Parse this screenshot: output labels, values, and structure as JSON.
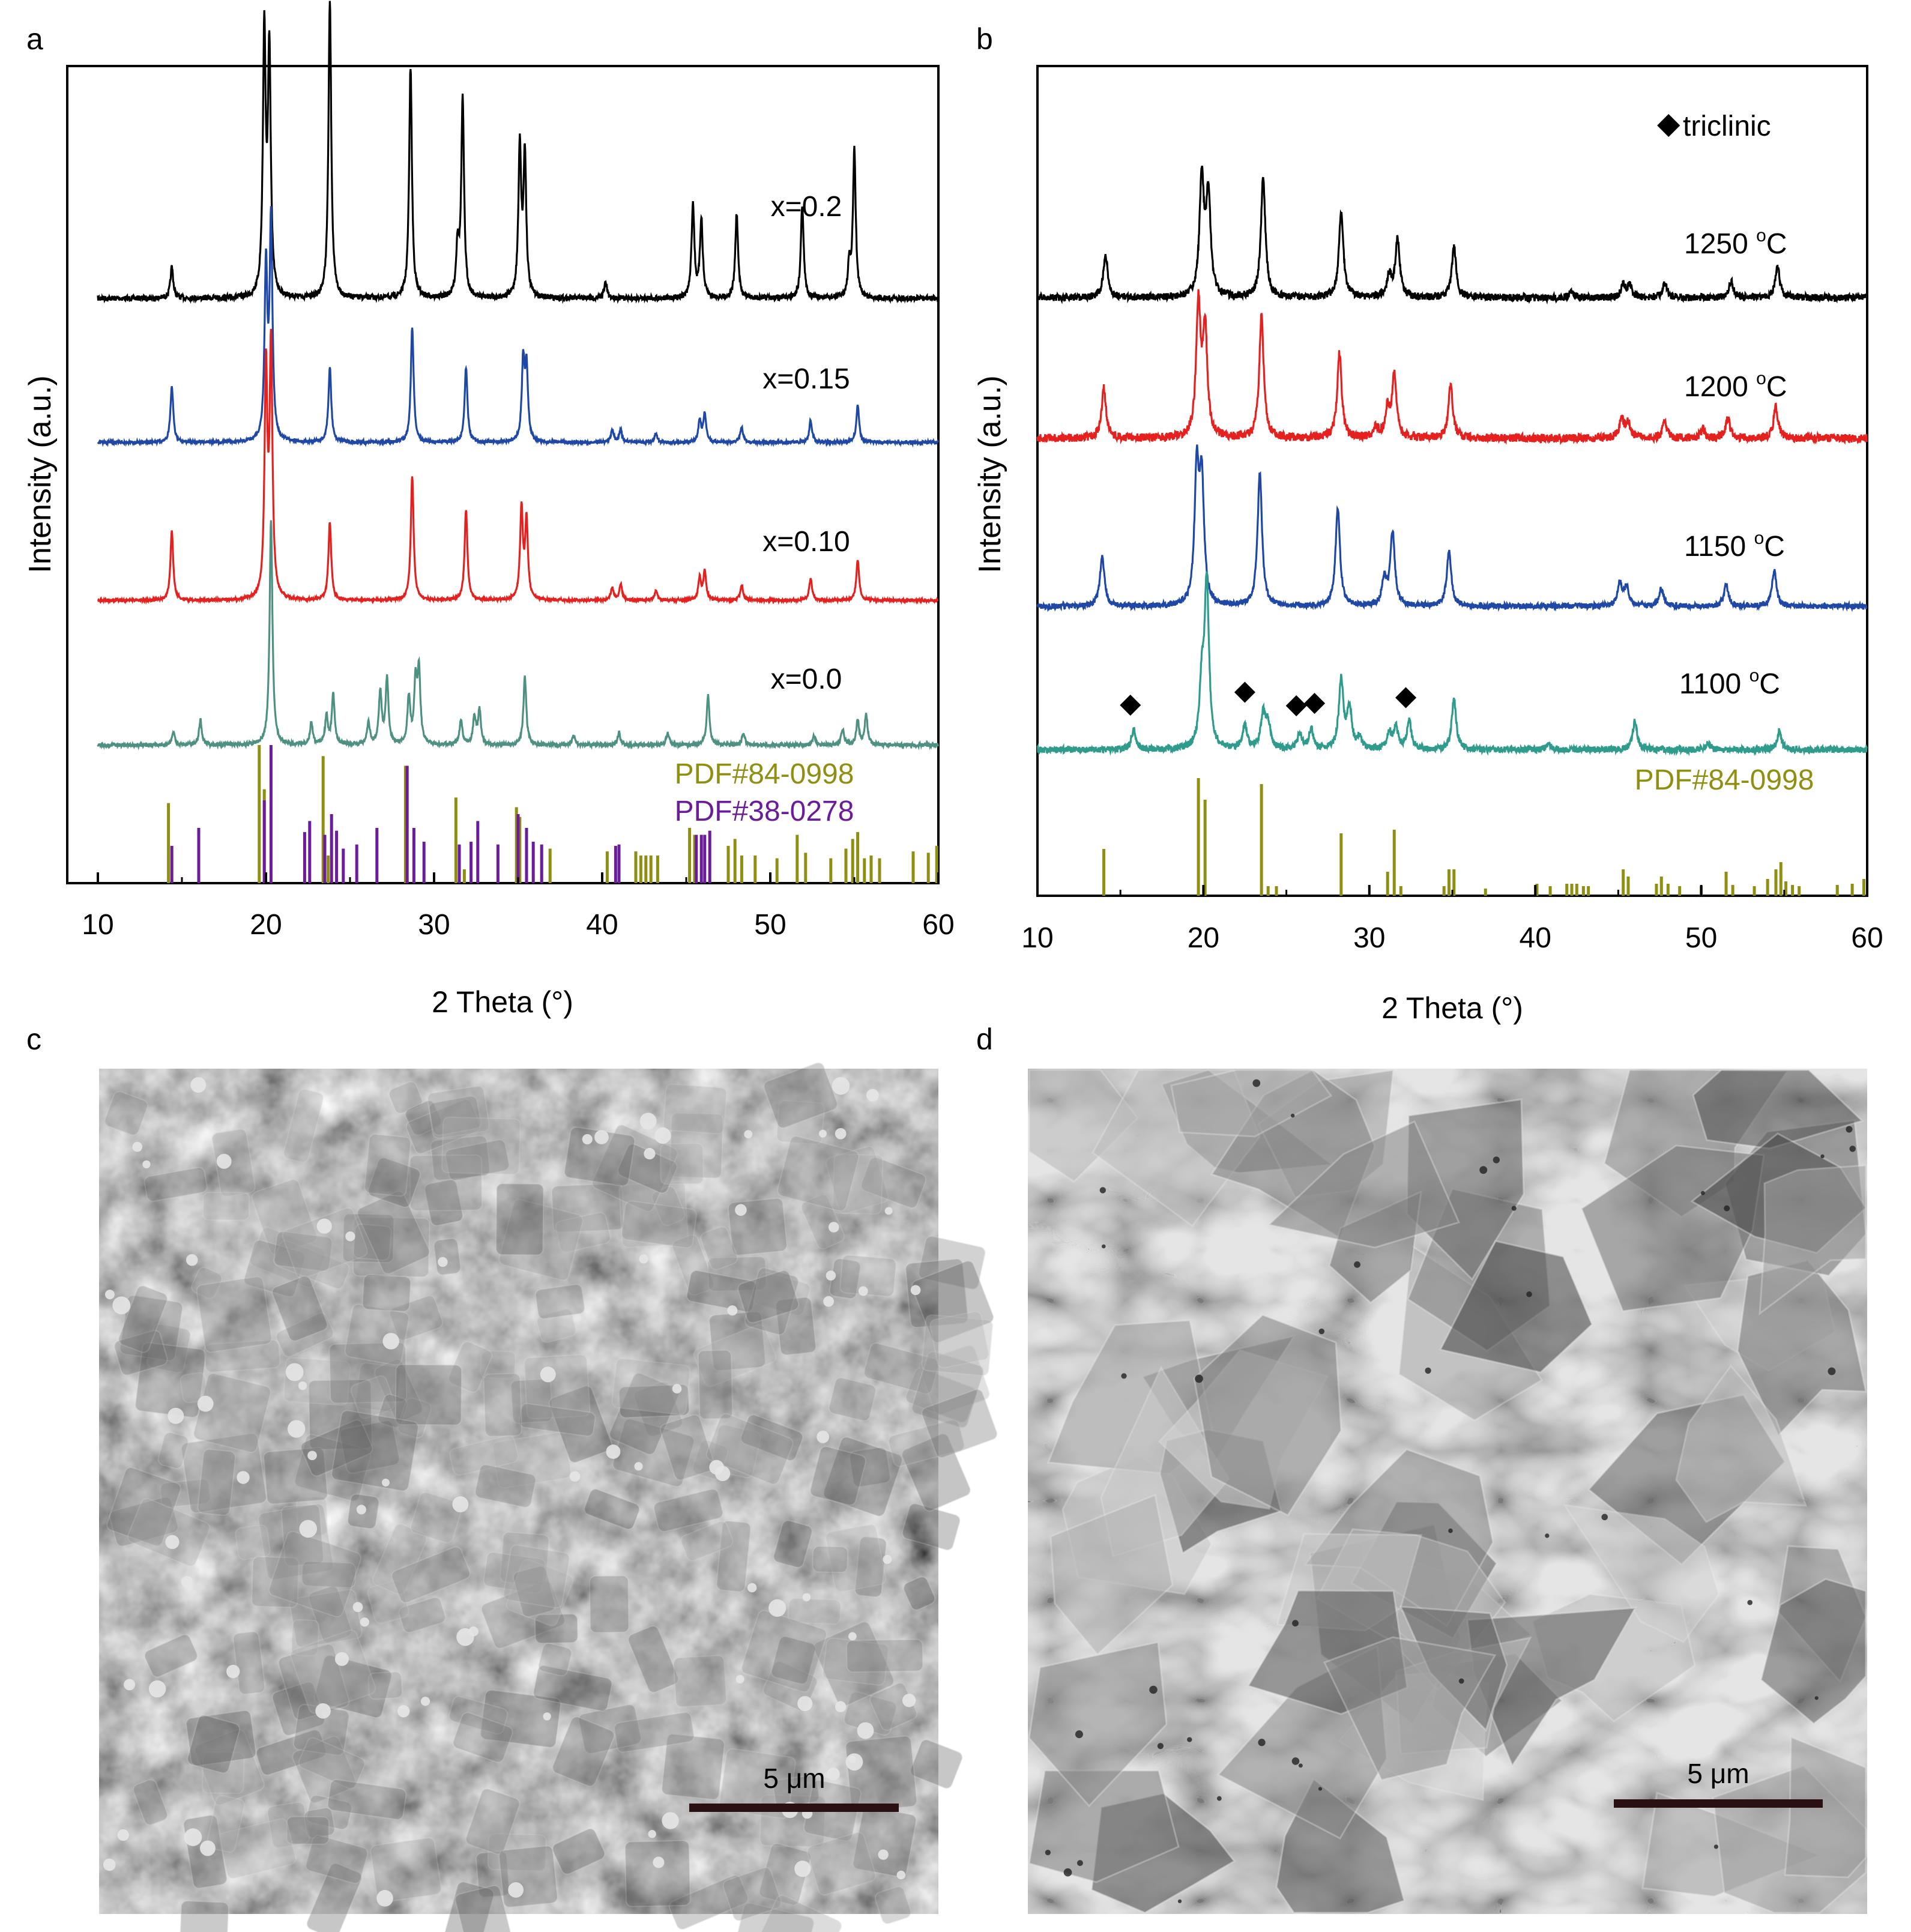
{
  "panels": {
    "a": "a",
    "b": "b",
    "c": "c",
    "d": "d"
  },
  "chart_data": [
    {
      "panel": "a",
      "type": "line",
      "xlabel": "2 Theta (°)",
      "ylabel": "Intensity (a.u.)",
      "xlim": [
        10,
        60
      ],
      "xticks": [
        10,
        20,
        30,
        40,
        50,
        60
      ],
      "tick_labels": [
        "10",
        "20",
        "30",
        "40",
        "50",
        "60"
      ],
      "series": [
        {
          "name": "x=0.2",
          "color": "#000000",
          "peaks": [
            [
              14.4,
              0.1
            ],
            [
              19.9,
              0.84
            ],
            [
              20.2,
              0.78
            ],
            [
              23.8,
              0.95
            ],
            [
              28.6,
              0.74
            ],
            [
              31.4,
              0.16
            ],
            [
              31.7,
              0.63
            ],
            [
              35.1,
              0.48
            ],
            [
              35.4,
              0.45
            ],
            [
              40.2,
              0.05
            ],
            [
              45.4,
              0.3
            ],
            [
              45.9,
              0.25
            ],
            [
              48.0,
              0.27
            ],
            [
              51.9,
              0.3
            ],
            [
              54.7,
              0.1
            ],
            [
              55.0,
              0.47
            ]
          ]
        },
        {
          "name": "x=0.15",
          "color": "#1f47a6",
          "peaks": [
            [
              14.4,
              0.18
            ],
            [
              20.0,
              0.55
            ],
            [
              20.3,
              0.7
            ],
            [
              23.8,
              0.24
            ],
            [
              28.7,
              0.37
            ],
            [
              31.9,
              0.24
            ],
            [
              35.3,
              0.25
            ],
            [
              35.5,
              0.23
            ],
            [
              40.6,
              0.04
            ],
            [
              41.1,
              0.04
            ],
            [
              43.2,
              0.03
            ],
            [
              45.8,
              0.07
            ],
            [
              46.1,
              0.09
            ],
            [
              48.3,
              0.05
            ],
            [
              52.4,
              0.07
            ],
            [
              55.2,
              0.12
            ]
          ]
        },
        {
          "name": "x=0.10",
          "color": "#e5211f",
          "peaks": [
            [
              14.4,
              0.22
            ],
            [
              20.0,
              0.73
            ],
            [
              20.3,
              0.8
            ],
            [
              23.8,
              0.25
            ],
            [
              28.7,
              0.4
            ],
            [
              31.9,
              0.29
            ],
            [
              35.2,
              0.29
            ],
            [
              35.5,
              0.25
            ],
            [
              40.6,
              0.04
            ],
            [
              41.1,
              0.05
            ],
            [
              43.2,
              0.03
            ],
            [
              45.8,
              0.07
            ],
            [
              46.1,
              0.09
            ],
            [
              48.3,
              0.05
            ],
            [
              52.4,
              0.07
            ],
            [
              55.2,
              0.13
            ]
          ]
        },
        {
          "name": "x=0.0",
          "color": "#4e9182",
          "peaks": [
            [
              14.5,
              0.04
            ],
            [
              16.1,
              0.08
            ],
            [
              20.3,
              0.72
            ],
            [
              22.7,
              0.07
            ],
            [
              23.6,
              0.09
            ],
            [
              24.0,
              0.16
            ],
            [
              26.1,
              0.07
            ],
            [
              26.8,
              0.17
            ],
            [
              27.2,
              0.21
            ],
            [
              28.5,
              0.15
            ],
            [
              28.9,
              0.19
            ],
            [
              29.1,
              0.23
            ],
            [
              31.6,
              0.08
            ],
            [
              32.4,
              0.09
            ],
            [
              32.7,
              0.11
            ],
            [
              35.4,
              0.22
            ],
            [
              38.3,
              0.03
            ],
            [
              41.0,
              0.04
            ],
            [
              43.9,
              0.04
            ],
            [
              46.3,
              0.16
            ],
            [
              48.4,
              0.04
            ],
            [
              52.6,
              0.03
            ],
            [
              54.3,
              0.05
            ],
            [
              55.2,
              0.08
            ],
            [
              55.7,
              0.1
            ]
          ]
        }
      ],
      "references": [
        {
          "name": "PDF#84-0998",
          "color": "#8f8f12",
          "lines": [
            [
              14.2,
              0.58
            ],
            [
              19.6,
              1.0
            ],
            [
              19.9,
              0.68
            ],
            [
              23.4,
              0.92
            ],
            [
              23.7,
              0.2
            ],
            [
              28.3,
              0.85
            ],
            [
              31.3,
              0.62
            ],
            [
              31.8,
              0.1
            ],
            [
              34.9,
              0.55
            ],
            [
              35.1,
              0.48
            ],
            [
              36.9,
              0.25
            ],
            [
              40.3,
              0.23
            ],
            [
              42.0,
              0.23
            ],
            [
              42.3,
              0.2
            ],
            [
              42.6,
              0.2
            ],
            [
              42.9,
              0.2
            ],
            [
              43.3,
              0.2
            ],
            [
              45.2,
              0.4
            ],
            [
              45.5,
              0.35
            ],
            [
              47.5,
              0.27
            ],
            [
              47.9,
              0.32
            ],
            [
              48.3,
              0.2
            ],
            [
              49.1,
              0.2
            ],
            [
              50.4,
              0.18
            ],
            [
              51.6,
              0.35
            ],
            [
              52.1,
              0.22
            ],
            [
              53.6,
              0.18
            ],
            [
              54.5,
              0.25
            ],
            [
              54.9,
              0.32
            ],
            [
              55.2,
              0.37
            ],
            [
              55.6,
              0.18
            ],
            [
              56.0,
              0.2
            ],
            [
              56.5,
              0.18
            ],
            [
              58.5,
              0.23
            ],
            [
              59.4,
              0.22
            ],
            [
              59.9,
              0.27
            ]
          ]
        },
        {
          "name": "PDF#38-0278",
          "color": "#6a1c9a",
          "lines": [
            [
              14.4,
              0.27
            ],
            [
              16.0,
              0.4
            ],
            [
              19.9,
              0.6
            ],
            [
              20.3,
              1.0
            ],
            [
              22.3,
              0.37
            ],
            [
              22.6,
              0.45
            ],
            [
              23.5,
              0.35
            ],
            [
              23.9,
              0.5
            ],
            [
              24.2,
              0.38
            ],
            [
              24.6,
              0.25
            ],
            [
              25.4,
              0.28
            ],
            [
              26.6,
              0.4
            ],
            [
              28.4,
              0.85
            ],
            [
              28.8,
              0.4
            ],
            [
              29.4,
              0.3
            ],
            [
              31.5,
              0.28
            ],
            [
              32.2,
              0.3
            ],
            [
              32.6,
              0.45
            ],
            [
              33.8,
              0.28
            ],
            [
              35.0,
              0.5
            ],
            [
              35.5,
              0.4
            ],
            [
              35.9,
              0.3
            ],
            [
              36.4,
              0.28
            ],
            [
              40.8,
              0.27
            ],
            [
              41.0,
              0.28
            ],
            [
              45.6,
              0.35
            ],
            [
              45.9,
              0.35
            ],
            [
              46.1,
              0.35
            ],
            [
              46.4,
              0.38
            ]
          ]
        }
      ]
    },
    {
      "panel": "b",
      "type": "line",
      "xlabel": "2 Theta (°)",
      "ylabel": "Intensity (a.u.)",
      "xlim": [
        10,
        60
      ],
      "xticks": [
        10,
        20,
        30,
        40,
        50,
        60
      ],
      "tick_labels": [
        "10",
        "20",
        "30",
        "40",
        "50",
        "60"
      ],
      "legend": {
        "marker": "◆",
        "label": "triclinic",
        "position": "top-right"
      },
      "series": [
        {
          "name": "1250 °C",
          "label_main": "1250 ",
          "label_sup": "o",
          "label_unit": "C",
          "color": "#000000",
          "peaks": [
            [
              14.1,
              0.24
            ],
            [
              19.9,
              0.66
            ],
            [
              20.3,
              0.56
            ],
            [
              23.6,
              0.67
            ],
            [
              28.3,
              0.48
            ],
            [
              31.2,
              0.12
            ],
            [
              31.7,
              0.32
            ],
            [
              35.1,
              0.28
            ],
            [
              42.2,
              0.04
            ],
            [
              45.3,
              0.07
            ],
            [
              45.7,
              0.07
            ],
            [
              47.8,
              0.08
            ],
            [
              51.8,
              0.09
            ],
            [
              54.6,
              0.17
            ]
          ]
        },
        {
          "name": "1200 °C",
          "label_main": "1200 ",
          "label_sup": "o",
          "label_unit": "C",
          "color": "#e5211f",
          "peaks": [
            [
              14.0,
              0.28
            ],
            [
              19.7,
              0.73
            ],
            [
              20.1,
              0.59
            ],
            [
              23.5,
              0.68
            ],
            [
              28.2,
              0.47
            ],
            [
              30.4,
              0.06
            ],
            [
              31.1,
              0.15
            ],
            [
              31.5,
              0.34
            ],
            [
              34.9,
              0.29
            ],
            [
              45.2,
              0.11
            ],
            [
              45.6,
              0.09
            ],
            [
              47.8,
              0.09
            ],
            [
              50.1,
              0.05
            ],
            [
              51.6,
              0.11
            ],
            [
              54.5,
              0.17
            ]
          ]
        },
        {
          "name": "1150 °C",
          "label_main": "1150 ",
          "label_sup": "o",
          "label_unit": "C",
          "color": "#1f47a6",
          "peaks": [
            [
              13.9,
              0.28
            ],
            [
              19.6,
              0.73
            ],
            [
              19.9,
              0.67
            ],
            [
              23.4,
              0.74
            ],
            [
              28.1,
              0.54
            ],
            [
              30.9,
              0.15
            ],
            [
              31.4,
              0.41
            ],
            [
              34.8,
              0.31
            ],
            [
              45.1,
              0.13
            ],
            [
              45.5,
              0.1
            ],
            [
              47.6,
              0.1
            ],
            [
              51.5,
              0.12
            ],
            [
              54.4,
              0.2
            ]
          ]
        },
        {
          "name": "1100 °C",
          "label_main": "1100 ",
          "label_sup": "o",
          "label_unit": "C",
          "color": "#2f9b8d",
          "peaks": [
            [
              15.8,
              0.11
            ],
            [
              19.9,
              0.33
            ],
            [
              20.2,
              0.92
            ],
            [
              22.5,
              0.14
            ],
            [
              23.6,
              0.19
            ],
            [
              23.9,
              0.14
            ],
            [
              25.8,
              0.09
            ],
            [
              26.5,
              0.11
            ],
            [
              28.3,
              0.39
            ],
            [
              28.8,
              0.23
            ],
            [
              29.4,
              0.06
            ],
            [
              31.2,
              0.09
            ],
            [
              31.6,
              0.12
            ],
            [
              32.4,
              0.16
            ],
            [
              35.1,
              0.28
            ],
            [
              40.8,
              0.04
            ],
            [
              46.0,
              0.16
            ],
            [
              50.4,
              0.04
            ],
            [
              54.7,
              0.1
            ]
          ]
        }
      ],
      "triclinic_markers": [
        15.6,
        22.5,
        25.6,
        26.7,
        32.2
      ],
      "references": [
        {
          "name": "PDF#84-0998",
          "color": "#8f8f12",
          "lines": [
            [
              14.0,
              0.39
            ],
            [
              19.7,
              0.98
            ],
            [
              20.1,
              0.8
            ],
            [
              23.5,
              0.93
            ],
            [
              23.9,
              0.08
            ],
            [
              24.4,
              0.08
            ],
            [
              28.3,
              0.52
            ],
            [
              31.1,
              0.2
            ],
            [
              31.5,
              0.55
            ],
            [
              31.9,
              0.08
            ],
            [
              34.5,
              0.08
            ],
            [
              34.8,
              0.22
            ],
            [
              35.1,
              0.22
            ],
            [
              37.0,
              0.06
            ],
            [
              40.1,
              0.1
            ],
            [
              40.9,
              0.08
            ],
            [
              41.9,
              0.1
            ],
            [
              42.2,
              0.1
            ],
            [
              42.5,
              0.1
            ],
            [
              42.9,
              0.08
            ],
            [
              43.2,
              0.08
            ],
            [
              45.3,
              0.22
            ],
            [
              45.6,
              0.16
            ],
            [
              47.3,
              0.1
            ],
            [
              47.6,
              0.16
            ],
            [
              48.0,
              0.1
            ],
            [
              48.7,
              0.08
            ],
            [
              50.0,
              0.08
            ],
            [
              51.5,
              0.2
            ],
            [
              51.9,
              0.09
            ],
            [
              53.2,
              0.08
            ],
            [
              54.0,
              0.14
            ],
            [
              54.5,
              0.22
            ],
            [
              54.8,
              0.28
            ],
            [
              55.1,
              0.12
            ],
            [
              55.5,
              0.09
            ],
            [
              55.9,
              0.08
            ],
            [
              58.2,
              0.09
            ],
            [
              59.1,
              0.1
            ],
            [
              59.8,
              0.14
            ]
          ]
        }
      ]
    }
  ],
  "micrographs": {
    "c": {
      "scale_label": "5 μm"
    },
    "d": {
      "scale_label": "5 μm"
    }
  }
}
